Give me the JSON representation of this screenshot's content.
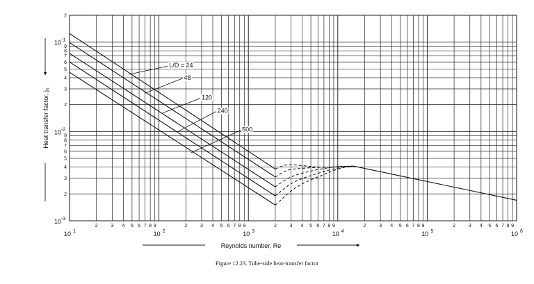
{
  "chart_data": {
    "type": "line",
    "x_scale": "log",
    "y_scale": "log",
    "xlim": [
      10,
      1000000
    ],
    "ylim": [
      0.001,
      0.2
    ],
    "grid": true,
    "xlabel": "Reynolds number, Re",
    "ylabel": "Heat transfer factor, jh",
    "x_major_ticks": [
      {
        "value": 10,
        "base": "10",
        "exp": "1"
      },
      {
        "value": 100,
        "base": "10",
        "exp": "2"
      },
      {
        "value": 1000,
        "base": "10",
        "exp": "3"
      },
      {
        "value": 10000,
        "base": "10",
        "exp": "4"
      },
      {
        "value": 100000,
        "base": "10",
        "exp": "5"
      },
      {
        "value": 1000000,
        "base": "10",
        "exp": "6"
      }
    ],
    "y_major_ticks": [
      {
        "value": 0.001,
        "base": "10",
        "exp": "-3"
      },
      {
        "value": 0.01,
        "base": "10",
        "exp": "-2"
      },
      {
        "value": 0.1,
        "base": "10",
        "exp": "-1"
      }
    ],
    "x_minor_labels": [
      "2",
      "3",
      "4",
      "5",
      "6",
      "7",
      "8",
      "9"
    ],
    "y_minor_labels": [
      "2",
      "3",
      "4",
      "5",
      "6",
      "7",
      "8",
      "9"
    ],
    "series": [
      {
        "name": "L/D = 24",
        "laminar": [
          [
            10,
            0.125
          ],
          [
            2000,
            0.0038
          ]
        ],
        "transition": [
          [
            2000,
            0.0038
          ],
          [
            2600,
            0.0042
          ],
          [
            3500,
            0.0042
          ],
          [
            6000,
            0.004
          ],
          [
            10000,
            0.004
          ],
          [
            15000,
            0.0041
          ]
        ]
      },
      {
        "name": "48",
        "laminar": [
          [
            10,
            0.099
          ],
          [
            2000,
            0.0031
          ]
        ],
        "transition": [
          [
            2000,
            0.0031
          ],
          [
            2800,
            0.0037
          ],
          [
            4500,
            0.0039
          ],
          [
            8000,
            0.004
          ],
          [
            15000,
            0.0041
          ]
        ]
      },
      {
        "name": "120",
        "laminar": [
          [
            10,
            0.075
          ],
          [
            2000,
            0.0024
          ]
        ],
        "transition": [
          [
            2000,
            0.0024
          ],
          [
            3000,
            0.0031
          ],
          [
            5000,
            0.0036
          ],
          [
            9000,
            0.004
          ],
          [
            15000,
            0.0041
          ]
        ]
      },
      {
        "name": "240",
        "laminar": [
          [
            10,
            0.06
          ],
          [
            2000,
            0.0019
          ]
        ],
        "transition": [
          [
            2000,
            0.0019
          ],
          [
            3200,
            0.0027
          ],
          [
            6000,
            0.0034
          ],
          [
            10000,
            0.0039
          ],
          [
            15000,
            0.0041
          ]
        ]
      },
      {
        "name": "500",
        "laminar": [
          [
            10,
            0.046
          ],
          [
            2000,
            0.0015
          ]
        ],
        "transition": [
          [
            2000,
            0.0015
          ],
          [
            3500,
            0.0024
          ],
          [
            7000,
            0.0033
          ],
          [
            11000,
            0.0039
          ],
          [
            15000,
            0.0041
          ]
        ]
      }
    ],
    "turbulent": [
      [
        15000,
        0.0041
      ],
      [
        1000000,
        0.0017
      ]
    ],
    "label_anchors": [
      {
        "series": 0,
        "x": 46,
        "y": 0.0435
      },
      {
        "series": 1,
        "x": 69,
        "y": 0.0267
      },
      {
        "series": 2,
        "x": 110,
        "y": 0.0161
      },
      {
        "series": 3,
        "x": 160,
        "y": 0.0099
      },
      {
        "series": 4,
        "x": 230,
        "y": 0.0058
      }
    ],
    "label_positions": [
      {
        "series": 0,
        "x": 130,
        "y": 0.055
      },
      {
        "series": 1,
        "x": 190,
        "y": 0.04
      },
      {
        "series": 2,
        "x": 300,
        "y": 0.024
      },
      {
        "series": 3,
        "x": 450,
        "y": 0.017
      },
      {
        "series": 4,
        "x": 850,
        "y": 0.0105
      }
    ]
  },
  "caption": "Figure 12.23.   Tube-side heat-transfer factor"
}
